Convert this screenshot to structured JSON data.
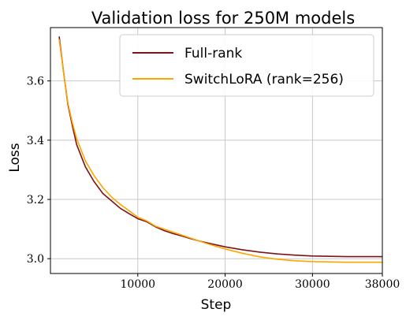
{
  "chart_data": {
    "type": "line",
    "title": "Validation loss for 250M models",
    "xlabel": "Step",
    "ylabel": "Loss",
    "xlim": [
      0,
      38000
    ],
    "ylim": [
      2.95,
      3.78
    ],
    "xticks": [
      10000,
      20000,
      30000,
      38000
    ],
    "xtick_labels": [
      "10000",
      "20000",
      "30000",
      "38000"
    ],
    "yticks": [
      3.0,
      3.2,
      3.4,
      3.6
    ],
    "ytick_labels": [
      "3.0",
      "3.2",
      "3.4",
      "3.6"
    ],
    "grid": true,
    "legend_position": "upper-right",
    "series": [
      {
        "name": "Full-rank",
        "color": "#7b1416",
        "x": [
          1000,
          1500,
          2000,
          2500,
          3000,
          4000,
          5000,
          6000,
          7000,
          8000,
          9000,
          10000,
          11000,
          12000,
          13000,
          14000,
          15000,
          16000,
          17000,
          18000,
          20000,
          22000,
          24000,
          26000,
          28000,
          30000,
          32000,
          34000,
          36000,
          38000
        ],
        "y": [
          3.75,
          3.63,
          3.52,
          3.45,
          3.385,
          3.31,
          3.26,
          3.22,
          3.195,
          3.17,
          3.152,
          3.135,
          3.125,
          3.108,
          3.095,
          3.085,
          3.077,
          3.068,
          3.06,
          3.053,
          3.04,
          3.03,
          3.022,
          3.016,
          3.012,
          3.009,
          3.008,
          3.007,
          3.007,
          3.007
        ]
      },
      {
        "name": "SwitchLoRA (rank=256)",
        "color": "#ffa500",
        "x": [
          1000,
          1500,
          2000,
          2500,
          3000,
          4000,
          5000,
          6000,
          7000,
          8000,
          9000,
          10000,
          11000,
          12000,
          13000,
          14000,
          15000,
          16000,
          17000,
          18000,
          20000,
          22000,
          24000,
          26000,
          28000,
          30000,
          32000,
          34000,
          36000,
          38000
        ],
        "y": [
          3.74,
          3.63,
          3.525,
          3.46,
          3.405,
          3.33,
          3.28,
          3.24,
          3.208,
          3.183,
          3.162,
          3.14,
          3.128,
          3.11,
          3.1,
          3.09,
          3.08,
          3.07,
          3.06,
          3.05,
          3.033,
          3.018,
          3.006,
          2.998,
          2.993,
          2.99,
          2.989,
          2.988,
          2.988,
          2.988
        ]
      }
    ]
  }
}
